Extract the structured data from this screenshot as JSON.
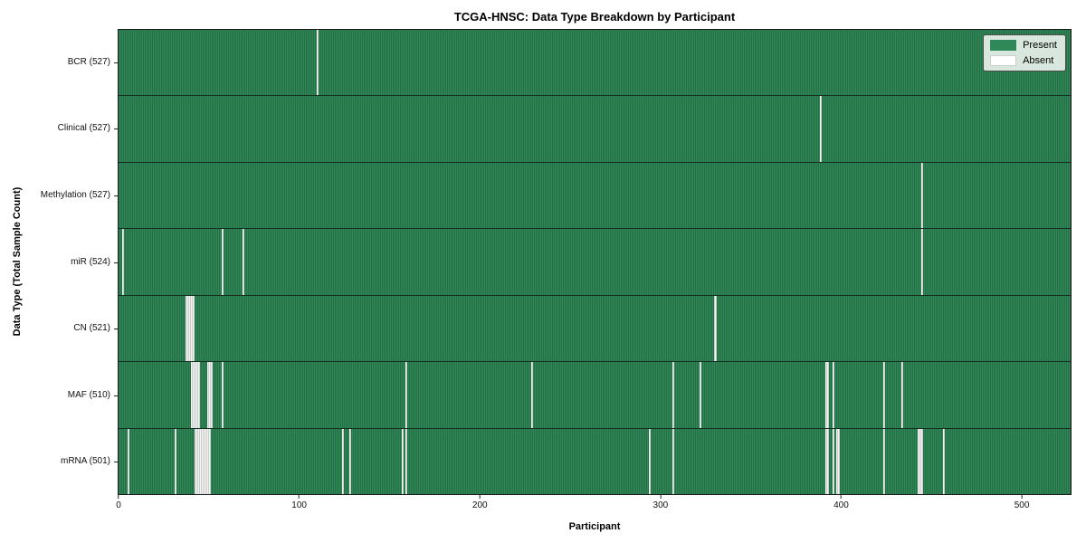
{
  "chart_data": {
    "type": "heatmap",
    "title": "TCGA-HNSC: Data Type Breakdown by Participant",
    "xlabel": "Participant",
    "ylabel": "Data Type (Total Sample Count)",
    "n_participants": 528,
    "xlim": [
      -0.5,
      527.5
    ],
    "x_ticks": [
      0,
      100,
      200,
      300,
      400,
      500
    ],
    "grid": false,
    "legend": {
      "position": "upper right",
      "entries": [
        {
          "label": "Present",
          "color": "#2E8857",
          "border": "none"
        },
        {
          "label": "Absent",
          "color": "#FFFFFF",
          "border": "1px solid #cccccc"
        }
      ]
    },
    "colors": {
      "present_fill": "#2E8857",
      "bar_edge": "#1d5434",
      "absent_fill": "#F4F4F4",
      "row_separator": "#12301f",
      "background": "#FFFFFF"
    },
    "rows": [
      {
        "label": "BCR (527)",
        "data_type": "BCR",
        "present_count": 527,
        "absent_count": 1,
        "absent_indices": [
          110
        ]
      },
      {
        "label": "Clinical (527)",
        "data_type": "Clinical",
        "present_count": 527,
        "absent_count": 1,
        "absent_indices": [
          389
        ]
      },
      {
        "label": "Methylation (527)",
        "data_type": "Methylation",
        "present_count": 527,
        "absent_count": 1,
        "absent_indices": [
          445
        ]
      },
      {
        "label": "miR (524)",
        "data_type": "miR",
        "present_count": 524,
        "absent_count": 4,
        "absent_indices": [
          2,
          57,
          69,
          445
        ]
      },
      {
        "label": "CN (521)",
        "data_type": "CN",
        "present_count": 521,
        "absent_count": 7,
        "absent_indices": [
          37,
          38,
          39,
          40,
          41,
          330,
          331
        ]
      },
      {
        "label": "MAF (510)",
        "data_type": "MAF",
        "present_count": 510,
        "absent_count": 18,
        "absent_indices": [
          40,
          41,
          42,
          43,
          44,
          49,
          50,
          51,
          57,
          159,
          229,
          307,
          322,
          392,
          393,
          396,
          424,
          434
        ]
      },
      {
        "label": "mRNA (501)",
        "data_type": "mRNA",
        "present_count": 501,
        "absent_count": 27,
        "absent_indices": [
          5,
          31,
          42,
          43,
          44,
          45,
          46,
          47,
          48,
          49,
          50,
          124,
          128,
          157,
          159,
          294,
          307,
          392,
          393,
          396,
          398,
          399,
          424,
          443,
          444,
          445,
          457
        ]
      }
    ]
  }
}
